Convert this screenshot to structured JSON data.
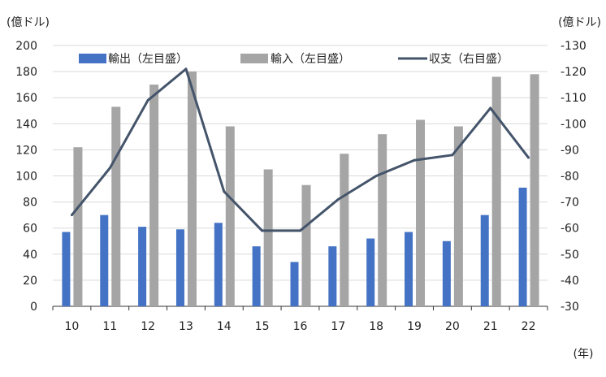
{
  "chart_data": {
    "type": "bar",
    "categories": [
      "10",
      "11",
      "12",
      "13",
      "14",
      "15",
      "16",
      "17",
      "18",
      "19",
      "20",
      "21",
      "22"
    ],
    "series": [
      {
        "name": "輸出（左目盛）",
        "type": "bar",
        "axis": "left",
        "color": "#4472c4",
        "values": [
          57,
          70,
          61,
          59,
          64,
          46,
          34,
          46,
          52,
          57,
          50,
          70,
          91
        ]
      },
      {
        "name": "輸入（左目盛）",
        "type": "bar",
        "axis": "left",
        "color": "#a5a5a5",
        "values": [
          122,
          153,
          170,
          180,
          138,
          105,
          93,
          117,
          132,
          143,
          138,
          176,
          178
        ]
      },
      {
        "name": "収支（右目盛）",
        "type": "line",
        "axis": "right",
        "color": "#44546a",
        "values": [
          -65,
          -83,
          -109,
          -121,
          -74,
          -59,
          -59,
          -71,
          -80,
          -86,
          -88,
          -106,
          -87
        ]
      }
    ],
    "left_axis": {
      "label": "(億ドル)",
      "range": [
        0,
        200
      ],
      "ticks": [
        "0",
        "20",
        "40",
        "60",
        "80",
        "100",
        "120",
        "140",
        "160",
        "180",
        "200"
      ]
    },
    "right_axis": {
      "label": "(億ドル)",
      "range": [
        -30,
        -130
      ],
      "ticks": [
        "-30",
        "-40",
        "-50",
        "-60",
        "-70",
        "-80",
        "-90",
        "-100",
        "-110",
        "-120",
        "-130"
      ]
    },
    "xlabel": "(年)",
    "grid": true,
    "legend": "top"
  }
}
